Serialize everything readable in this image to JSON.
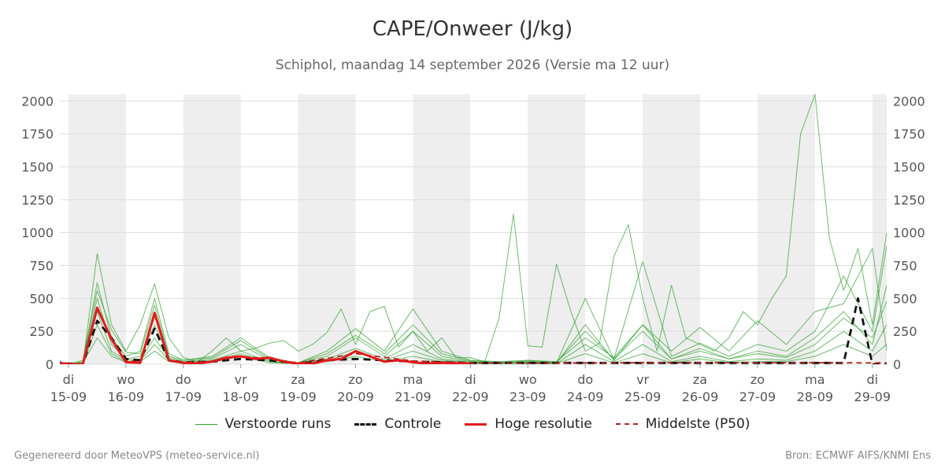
{
  "chart_data": {
    "type": "line",
    "title": "CAPE/Onweer (J/kg)",
    "subtitle": "Schiphol, maandag 14 september 2026 (Versie ma 12 uur)",
    "ylim": [
      0,
      2050
    ],
    "yticks": [
      0,
      250,
      500,
      750,
      1000,
      1250,
      1500,
      1750,
      2000
    ],
    "x_range_days": [
      -0.15,
      14.25
    ],
    "x_day_ticks": [
      {
        "day": 0,
        "weekday": "di",
        "date": "15-09"
      },
      {
        "day": 1,
        "weekday": "wo",
        "date": "16-09"
      },
      {
        "day": 2,
        "weekday": "do",
        "date": "17-09"
      },
      {
        "day": 3,
        "weekday": "vr",
        "date": "18-09"
      },
      {
        "day": 4,
        "weekday": "za",
        "date": "19-09"
      },
      {
        "day": 5,
        "weekday": "zo",
        "date": "20-09"
      },
      {
        "day": 6,
        "weekday": "ma",
        "date": "21-09"
      },
      {
        "day": 7,
        "weekday": "di",
        "date": "22-09"
      },
      {
        "day": 8,
        "weekday": "wo",
        "date": "23-09"
      },
      {
        "day": 9,
        "weekday": "do",
        "date": "24-09"
      },
      {
        "day": 10,
        "weekday": "vr",
        "date": "25-09"
      },
      {
        "day": 11,
        "weekday": "za",
        "date": "26-09"
      },
      {
        "day": 12,
        "weekday": "zo",
        "date": "27-09"
      },
      {
        "day": 13,
        "weekday": "ma",
        "date": "28-09"
      },
      {
        "day": 14,
        "weekday": "di",
        "date": "29-09"
      }
    ],
    "grid": true,
    "legend_position": "bottom",
    "colors": {
      "perturbed": "#2ca02c",
      "control": "#111111",
      "hires": "#e31a1c",
      "median": "#b22222",
      "shade": "#eeeeee"
    },
    "series": [
      {
        "name": "Controle",
        "style": "dashed",
        "x": [
          -0.25,
          0,
          0.25,
          0.5,
          0.75,
          1.0,
          1.25,
          1.5,
          1.75,
          2.0,
          2.5,
          3.0,
          3.5,
          4.0,
          4.5,
          5.0,
          5.5,
          6.0,
          7.0,
          8.0,
          9.0,
          10.0,
          11.0,
          12.0,
          13.0,
          13.5,
          13.75,
          14.0,
          14.25
        ],
        "values": [
          20,
          5,
          0,
          330,
          200,
          40,
          30,
          270,
          30,
          15,
          20,
          40,
          30,
          5,
          30,
          40,
          30,
          20,
          10,
          10,
          10,
          10,
          10,
          10,
          10,
          10,
          500,
          0,
          0
        ]
      },
      {
        "name": "Hoge resolutie",
        "style": "solid",
        "x": [
          -0.25,
          0,
          0.25,
          0.5,
          0.75,
          1.0,
          1.25,
          1.5,
          1.75,
          2.0,
          2.25,
          2.5,
          2.75,
          3.0,
          3.25,
          3.5,
          3.75,
          4.0,
          4.25,
          4.5,
          4.75,
          5.0,
          5.25,
          5.5,
          5.75,
          6.0,
          6.25,
          6.5,
          7.0
        ],
        "values": [
          15,
          0,
          0,
          430,
          190,
          15,
          10,
          390,
          30,
          10,
          5,
          20,
          50,
          60,
          40,
          50,
          20,
          5,
          5,
          30,
          40,
          100,
          60,
          20,
          30,
          15,
          5,
          10,
          5
        ]
      },
      {
        "name": "Middelste (P50)",
        "style": "dashed",
        "x": [
          -0.25,
          0,
          0.25,
          0.5,
          0.75,
          1.0,
          1.25,
          1.5,
          1.75,
          2.0,
          2.5,
          3.0,
          3.5,
          4.0,
          5.0,
          6.0,
          7.0,
          8.0,
          9.0,
          10.0,
          11.0,
          12.0,
          13.0,
          14.0,
          14.25
        ],
        "values": [
          20,
          5,
          0,
          420,
          190,
          25,
          20,
          370,
          30,
          15,
          20,
          60,
          40,
          10,
          80,
          25,
          10,
          8,
          10,
          12,
          12,
          12,
          12,
          10,
          10
        ]
      },
      {
        "name": "Verstoorde runs",
        "style": "thin",
        "x": [
          -0.25,
          0,
          0.25,
          0.5,
          0.75,
          1.0,
          1.25,
          1.5,
          1.75,
          2.0,
          2.25,
          2.5,
          2.75,
          3.0,
          3.25,
          3.5,
          3.75,
          4.0,
          4.25,
          4.5,
          4.75,
          5.0,
          5.25,
          5.5,
          5.75,
          6.0,
          6.25,
          6.5,
          6.75,
          7.0,
          7.25,
          7.5,
          7.75,
          8.0,
          8.25,
          8.5,
          8.75,
          9.0,
          9.25,
          9.5,
          9.75,
          10.0,
          10.25,
          10.5,
          10.75,
          11.0,
          11.25,
          11.5,
          11.75,
          12.0,
          12.25,
          12.5,
          12.75,
          13.0,
          13.25,
          13.5,
          13.75,
          14.0,
          14.25
        ],
        "values": [
          30,
          0,
          0,
          840,
          300,
          100,
          300,
          610,
          200,
          50,
          20,
          100,
          200,
          100,
          120,
          160,
          180,
          100,
          150,
          240,
          420,
          150,
          400,
          440,
          130,
          250,
          100,
          200,
          50,
          50,
          20,
          350,
          1140,
          140,
          130,
          760,
          400,
          100,
          160,
          820,
          1060,
          500,
          100,
          600,
          200,
          150,
          100,
          200,
          400,
          300,
          500,
          670,
          1750,
          2050,
          960,
          560,
          880,
          300,
          1000
        ]
      },
      {
        "name": "Verstoorde runs",
        "style": "thin",
        "x": [
          -0.25,
          0,
          0.25,
          0.5,
          0.75,
          1.0,
          1.25,
          1.5,
          1.75,
          2.0,
          2.5,
          3.0,
          3.5,
          4.0,
          4.5,
          5.0,
          5.5,
          6.0,
          6.5,
          7.0,
          7.5,
          8.0,
          8.5,
          9.0,
          9.5,
          10.0,
          10.5,
          11.0,
          11.5,
          12.0,
          12.5,
          13.0,
          13.5,
          14.0,
          14.25
        ],
        "values": [
          20,
          0,
          10,
          620,
          200,
          60,
          100,
          500,
          80,
          30,
          60,
          200,
          50,
          10,
          100,
          270,
          100,
          420,
          100,
          30,
          20,
          30,
          20,
          200,
          50,
          300,
          100,
          280,
          100,
          330,
          150,
          400,
          460,
          880,
          100
        ]
      },
      {
        "name": "Verstoorde runs",
        "style": "thin",
        "x": [
          -0.25,
          0,
          0.25,
          0.5,
          0.75,
          1.0,
          1.25,
          1.5,
          1.75,
          2.0,
          2.5,
          3.0,
          3.5,
          4.0,
          4.5,
          5.0,
          5.5,
          6.0,
          6.5,
          7.0,
          7.5,
          8.0,
          8.5,
          9.0,
          9.5,
          10.0,
          10.5,
          11.0,
          11.5,
          12.0,
          12.5,
          13.0,
          13.5,
          14.0,
          14.25
        ],
        "values": [
          10,
          0,
          20,
          500,
          150,
          40,
          60,
          300,
          50,
          20,
          40,
          150,
          30,
          10,
          60,
          200,
          60,
          250,
          60,
          20,
          10,
          20,
          10,
          500,
          40,
          780,
          60,
          160,
          60,
          150,
          100,
          250,
          670,
          250,
          900
        ]
      },
      {
        "name": "Verstoorde runs",
        "style": "thin",
        "x": [
          -0.25,
          0,
          0.25,
          0.5,
          0.75,
          1.0,
          1.25,
          1.5,
          1.75,
          2.0,
          2.5,
          3.0,
          3.5,
          4.0,
          4.5,
          5.0,
          5.5,
          6.0,
          6.5,
          7.0,
          7.5,
          8.0,
          8.5,
          9.0,
          9.5,
          10.0,
          10.5,
          11.0,
          11.5,
          12.0,
          12.5,
          13.0,
          13.5,
          14.0,
          14.25
        ],
        "values": [
          5,
          0,
          5,
          400,
          100,
          30,
          40,
          200,
          40,
          10,
          30,
          100,
          20,
          5,
          40,
          120,
          40,
          150,
          40,
          15,
          10,
          15,
          10,
          300,
          30,
          300,
          40,
          100,
          40,
          80,
          50,
          150,
          350,
          200,
          480
        ]
      },
      {
        "name": "Verstoorde runs",
        "style": "thin",
        "x": [
          -0.25,
          0,
          0.25,
          0.5,
          0.75,
          1.0,
          1.25,
          1.5,
          1.75,
          2.0,
          2.5,
          3.0,
          3.5,
          4.0,
          4.5,
          5.0,
          5.5,
          6.0,
          6.5,
          7.0,
          7.5,
          8.0,
          8.5,
          9.0,
          9.5,
          10.0,
          10.5,
          11.0,
          11.5,
          12.0,
          12.5,
          13.0,
          13.5,
          14.0,
          14.25
        ],
        "values": [
          15,
          0,
          0,
          300,
          80,
          20,
          30,
          150,
          30,
          10,
          20,
          80,
          20,
          5,
          30,
          90,
          30,
          100,
          30,
          10,
          5,
          10,
          5,
          150,
          20,
          150,
          20,
          60,
          20,
          40,
          30,
          100,
          250,
          100,
          300
        ]
      },
      {
        "name": "Verstoorde runs",
        "style": "thin",
        "x": [
          -0.25,
          0,
          0.25,
          0.5,
          0.75,
          1.0,
          1.25,
          1.5,
          1.75,
          2.0,
          2.5,
          3.0,
          3.5,
          4.0,
          4.5,
          5.0,
          5.5,
          6.0,
          6.5,
          7.0,
          7.5,
          8.0,
          8.5,
          9.0,
          9.5,
          10.0,
          10.5,
          11.0,
          11.5,
          12.0,
          12.5,
          13.0,
          13.5,
          14.0,
          14.25
        ],
        "values": [
          10,
          0,
          10,
          200,
          60,
          15,
          20,
          100,
          20,
          5,
          15,
          60,
          10,
          5,
          20,
          60,
          20,
          60,
          20,
          5,
          5,
          5,
          5,
          80,
          10,
          80,
          10,
          40,
          10,
          20,
          20,
          60,
          150,
          60,
          150
        ]
      },
      {
        "name": "Verstoorde runs",
        "style": "thin",
        "x": [
          -0.25,
          0,
          0.25,
          0.5,
          0.75,
          1.0,
          1.25,
          1.5,
          1.75,
          2.0,
          2.5,
          3.0,
          3.5,
          4.0,
          4.5,
          5.0,
          5.5,
          6.0,
          6.5,
          7.0,
          7.5,
          8.0,
          8.5,
          9.0,
          9.5,
          10.0,
          10.5,
          11.0,
          11.5,
          12.0,
          12.5,
          13.0,
          13.5,
          14.0,
          14.25
        ],
        "values": [
          25,
          0,
          30,
          560,
          260,
          90,
          80,
          450,
          60,
          30,
          50,
          180,
          40,
          10,
          80,
          220,
          80,
          300,
          80,
          25,
          15,
          25,
          15,
          250,
          40,
          250,
          40,
          120,
          40,
          100,
          60,
          200,
          400,
          150,
          600
        ]
      }
    ]
  },
  "legend": [
    {
      "label": "Verstoorde runs",
      "key": "perturbed"
    },
    {
      "label": "Controle",
      "key": "control"
    },
    {
      "label": "Hoge resolutie",
      "key": "hires"
    },
    {
      "label": "Middelste (P50)",
      "key": "median"
    }
  ],
  "footer": {
    "left": "Gegenereerd door MeteoVPS (meteo-service.nl)",
    "right": "Bron: ECMWF AIFS/KNMI Ens"
  }
}
